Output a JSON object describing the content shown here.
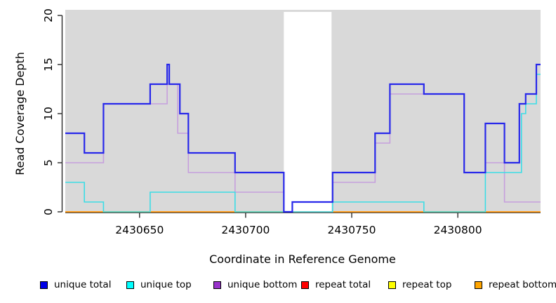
{
  "figure": {
    "y_axis_title": "Read Coverage Depth",
    "x_axis_title": "Coordinate in Reference Genome",
    "y_tick_labels": [
      "0",
      "5",
      "10",
      "15",
      "20"
    ],
    "x_tick_labels": [
      "2430650",
      "2430700",
      "2430750",
      "2430800"
    ]
  },
  "chart_data": {
    "type": "line",
    "subtype": "step-coverage",
    "title": "",
    "xlabel": "Coordinate in Reference Genome",
    "ylabel": "Read Coverage Depth",
    "x_range": [
      2430615,
      2430839
    ],
    "ylim": [
      0,
      20
    ],
    "x_ticks": [
      2430650,
      2430700,
      2430750,
      2430800
    ],
    "y_ticks": [
      0,
      5,
      10,
      15,
      20
    ],
    "grid": false,
    "legend_position": "bottom",
    "shaded_background_color": "#d9d9d9",
    "unshaded_gap_x": [
      2430718,
      2430740.5
    ],
    "series": [
      {
        "name": "unique total",
        "legend_color": "#0000e8",
        "line_color": "#2828ea",
        "line_width": 2.2,
        "steps": [
          [
            2430615,
            8
          ],
          [
            2430624,
            6
          ],
          [
            2430633,
            11
          ],
          [
            2430655,
            13
          ],
          [
            2430663,
            15
          ],
          [
            2430664,
            13
          ],
          [
            2430669,
            10
          ],
          [
            2430673,
            6
          ],
          [
            2430695,
            4
          ],
          [
            2430718,
            0
          ],
          [
            2430722,
            1
          ],
          [
            2430741,
            4
          ],
          [
            2430761,
            8
          ],
          [
            2430768,
            13
          ],
          [
            2430784,
            12
          ],
          [
            2430803,
            4
          ],
          [
            2430813,
            9
          ],
          [
            2430822,
            5
          ],
          [
            2430829,
            11
          ],
          [
            2430832,
            12
          ],
          [
            2430837,
            15
          ]
        ]
      },
      {
        "name": "unique top",
        "legend_color": "#00ffff",
        "line_color": "#3cdde6",
        "line_width": 1.6,
        "steps": [
          [
            2430615,
            3
          ],
          [
            2430624,
            1
          ],
          [
            2430633,
            0
          ],
          [
            2430655,
            2
          ],
          [
            2430695,
            0
          ],
          [
            2430741,
            1
          ],
          [
            2430784,
            0
          ],
          [
            2430813,
            4
          ],
          [
            2430830,
            10
          ],
          [
            2430832,
            11
          ],
          [
            2430837,
            14
          ]
        ]
      },
      {
        "name": "unique bottom",
        "legend_color": "#9932cc",
        "line_color": "#c69fdd",
        "line_width": 1.6,
        "steps": [
          [
            2430615,
            5
          ],
          [
            2430633,
            11
          ],
          [
            2430663,
            13
          ],
          [
            2430668,
            8
          ],
          [
            2430673,
            4
          ],
          [
            2430695,
            2
          ],
          [
            2430718,
            0
          ],
          [
            2430741,
            3
          ],
          [
            2430761,
            7
          ],
          [
            2430768,
            12
          ],
          [
            2430803,
            4
          ],
          [
            2430813,
            5
          ],
          [
            2430822,
            1
          ]
        ]
      },
      {
        "name": "repeat total",
        "legend_color": "#ff0000",
        "line_color": "#e03030",
        "line_width": 1.4,
        "steps": [
          [
            2430615,
            0
          ]
        ]
      },
      {
        "name": "repeat top",
        "legend_color": "#ffff00",
        "line_color": "#e8e800",
        "line_width": 1.4,
        "steps": [
          [
            2430615,
            0
          ]
        ]
      },
      {
        "name": "repeat bottom",
        "legend_color": "#ffa500",
        "line_color": "#ff9a1e",
        "line_width": 1.8,
        "steps": [
          [
            2430615,
            0
          ]
        ]
      }
    ]
  }
}
